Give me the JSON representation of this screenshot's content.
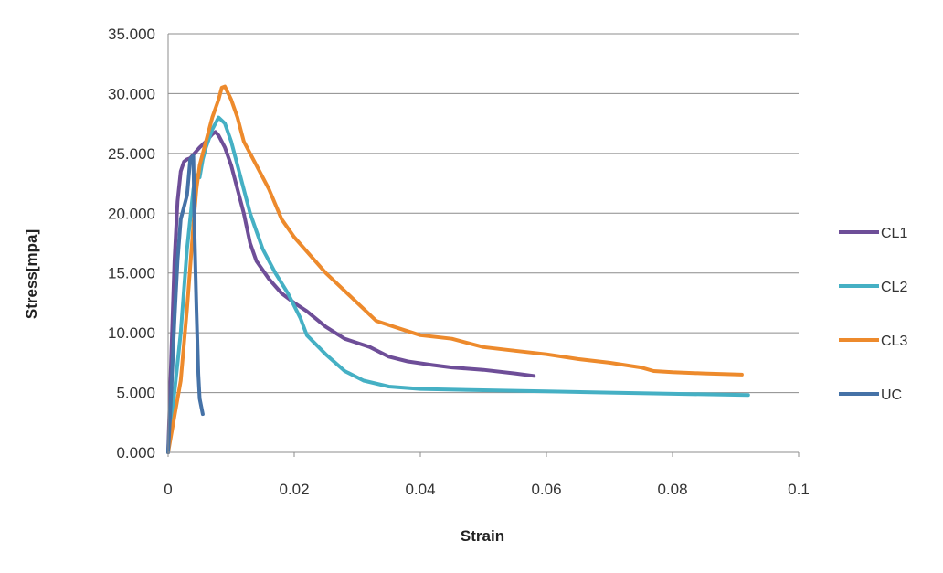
{
  "chart_data": {
    "type": "line",
    "xlabel": "Strain",
    "ylabel": "Stress[mpa]",
    "xlim": [
      0,
      0.1
    ],
    "ylim": [
      0,
      35
    ],
    "x_ticks": [
      "0",
      "0.02",
      "0.04",
      "0.06",
      "0.08",
      "0.1"
    ],
    "y_ticks": [
      "0.000",
      "5.000",
      "10.000",
      "15.000",
      "20.000",
      "25.000",
      "30.000",
      "35.000"
    ],
    "grid": "horizontal",
    "legend_position": "right",
    "series": [
      {
        "name": "CL1",
        "color": "#6e4e98",
        "points": [
          [
            0,
            0
          ],
          [
            0.0005,
            8
          ],
          [
            0.001,
            16
          ],
          [
            0.0015,
            21
          ],
          [
            0.002,
            23.5
          ],
          [
            0.0025,
            24.3
          ],
          [
            0.003,
            24.5
          ],
          [
            0.0035,
            24.6
          ],
          [
            0.004,
            24.9
          ],
          [
            0.005,
            25.5
          ],
          [
            0.006,
            26
          ],
          [
            0.007,
            26.6
          ],
          [
            0.0075,
            26.8
          ],
          [
            0.008,
            26.5
          ],
          [
            0.009,
            25.5
          ],
          [
            0.01,
            24
          ],
          [
            0.011,
            22
          ],
          [
            0.012,
            20
          ],
          [
            0.013,
            17.5
          ],
          [
            0.014,
            16
          ],
          [
            0.016,
            14.5
          ],
          [
            0.018,
            13.3
          ],
          [
            0.02,
            12.5
          ],
          [
            0.022,
            11.8
          ],
          [
            0.025,
            10.5
          ],
          [
            0.028,
            9.5
          ],
          [
            0.032,
            8.8
          ],
          [
            0.035,
            8.0
          ],
          [
            0.038,
            7.6
          ],
          [
            0.042,
            7.3
          ],
          [
            0.045,
            7.1
          ],
          [
            0.05,
            6.9
          ],
          [
            0.055,
            6.6
          ],
          [
            0.058,
            6.4
          ]
        ]
      },
      {
        "name": "CL2",
        "color": "#45b0c4",
        "points": [
          [
            0,
            0
          ],
          [
            0.001,
            5
          ],
          [
            0.002,
            10
          ],
          [
            0.003,
            17
          ],
          [
            0.004,
            22
          ],
          [
            0.0045,
            23.2
          ],
          [
            0.005,
            23
          ],
          [
            0.0055,
            24.5
          ],
          [
            0.006,
            25.5
          ],
          [
            0.007,
            27
          ],
          [
            0.008,
            28
          ],
          [
            0.009,
            27.5
          ],
          [
            0.01,
            26
          ],
          [
            0.011,
            24
          ],
          [
            0.012,
            22
          ],
          [
            0.013,
            20
          ],
          [
            0.015,
            17
          ],
          [
            0.017,
            15
          ],
          [
            0.019,
            13.3
          ],
          [
            0.021,
            11.2
          ],
          [
            0.022,
            9.8
          ],
          [
            0.025,
            8.2
          ],
          [
            0.028,
            6.8
          ],
          [
            0.031,
            6.0
          ],
          [
            0.035,
            5.5
          ],
          [
            0.04,
            5.3
          ],
          [
            0.05,
            5.2
          ],
          [
            0.06,
            5.1
          ],
          [
            0.07,
            5.0
          ],
          [
            0.08,
            4.9
          ],
          [
            0.092,
            4.8
          ]
        ]
      },
      {
        "name": "CL3",
        "color": "#ed8a2c",
        "points": [
          [
            0,
            0
          ],
          [
            0.001,
            3
          ],
          [
            0.002,
            6
          ],
          [
            0.003,
            12
          ],
          [
            0.004,
            19
          ],
          [
            0.0045,
            22
          ],
          [
            0.005,
            24
          ],
          [
            0.006,
            26
          ],
          [
            0.007,
            28
          ],
          [
            0.008,
            29.5
          ],
          [
            0.0085,
            30.5
          ],
          [
            0.009,
            30.6
          ],
          [
            0.01,
            29.5
          ],
          [
            0.011,
            28
          ],
          [
            0.012,
            26
          ],
          [
            0.014,
            24
          ],
          [
            0.016,
            22
          ],
          [
            0.018,
            19.5
          ],
          [
            0.02,
            18
          ],
          [
            0.022,
            16.8
          ],
          [
            0.025,
            15
          ],
          [
            0.028,
            13.5
          ],
          [
            0.03,
            12.5
          ],
          [
            0.033,
            11
          ],
          [
            0.037,
            10.3
          ],
          [
            0.04,
            9.8
          ],
          [
            0.045,
            9.5
          ],
          [
            0.05,
            8.8
          ],
          [
            0.055,
            8.5
          ],
          [
            0.06,
            8.2
          ],
          [
            0.065,
            7.8
          ],
          [
            0.07,
            7.5
          ],
          [
            0.075,
            7.1
          ],
          [
            0.077,
            6.8
          ],
          [
            0.08,
            6.7
          ],
          [
            0.085,
            6.6
          ],
          [
            0.091,
            6.5
          ]
        ]
      },
      {
        "name": "UC",
        "color": "#4572a7",
        "points": [
          [
            0,
            0
          ],
          [
            0.0005,
            5
          ],
          [
            0.001,
            11
          ],
          [
            0.0015,
            16
          ],
          [
            0.002,
            19.5
          ],
          [
            0.0025,
            20.5
          ],
          [
            0.003,
            21.5
          ],
          [
            0.0035,
            24.5
          ],
          [
            0.004,
            24.8
          ],
          [
            0.0042,
            18
          ],
          [
            0.0045,
            12
          ],
          [
            0.0048,
            6.5
          ],
          [
            0.005,
            4.5
          ],
          [
            0.0055,
            3.2
          ]
        ]
      }
    ]
  }
}
